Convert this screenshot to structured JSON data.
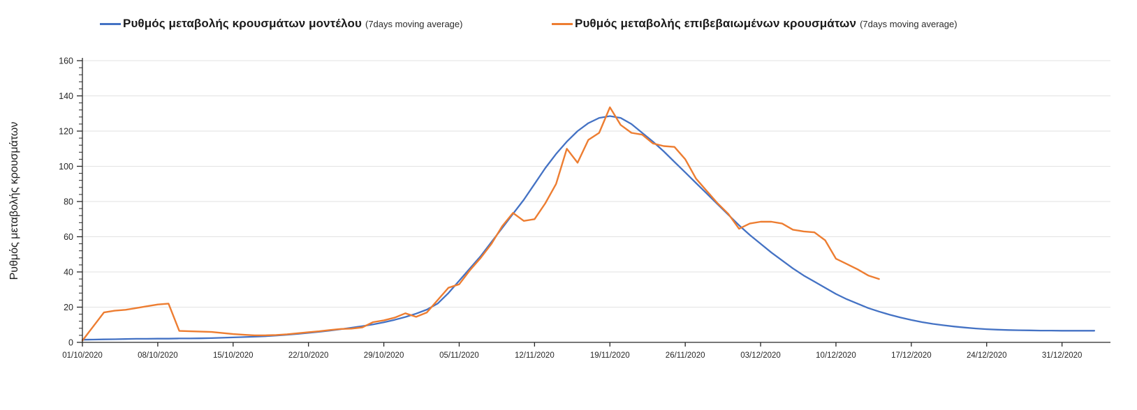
{
  "page": {
    "background": "#ffffff"
  },
  "y_axis_title": "Ρυθμός μεταβολής κρουσμάτων",
  "legend": {
    "position": "top",
    "items": [
      {
        "label": "Ρυθμός μεταβολής κρουσμάτων μοντέλου",
        "note": "(7days moving average)",
        "color": "#4472C4"
      },
      {
        "label": "Ρυθμός μεταβολής επιβεβαιωμένων κρουσμάτων",
        "note": "(7days moving average)",
        "color": "#ED7D31"
      }
    ]
  },
  "colors": {
    "series_model": "#4472C4",
    "series_confirmed": "#ED7D31",
    "axis": "#262626",
    "gridline": "#e2e2e2",
    "tick_text": "#262626"
  },
  "chart_data": {
    "type": "line",
    "title": "",
    "xlabel": "",
    "ylabel": "Ρυθμός μεταβολής κρουσμάτων",
    "x_unit": "days since 01/10/2020, daily points",
    "xlim": [
      0,
      95.5
    ],
    "ylim": [
      0,
      160
    ],
    "y_major_ticks": [
      0,
      20,
      40,
      60,
      80,
      100,
      120,
      140,
      160
    ],
    "y_minor_unit": 4,
    "grid": "horizontal gridlines at major y ticks",
    "legend_position": "top",
    "x_tick_days": [
      0,
      7,
      14,
      21,
      28,
      35,
      42,
      49,
      56,
      63,
      70,
      77,
      84,
      91
    ],
    "x_tick_labels": [
      "01/10/2020",
      "08/10/2020",
      "15/10/2020",
      "22/10/2020",
      "29/10/2020",
      "05/11/2020",
      "12/11/2020",
      "19/11/2020",
      "26/11/2020",
      "03/12/2020",
      "10/12/2020",
      "17/12/2020",
      "24/12/2020",
      "31/12/2020"
    ],
    "series": [
      {
        "name": "Ρυθμός μεταβολής κρουσμάτων μοντέλου (7days moving average)",
        "color": "#4472C4",
        "start_date": "01/10/2020",
        "start_day": 0,
        "values": [
          1.5,
          1.6,
          1.7,
          1.8,
          1.9,
          2.0,
          2.0,
          2.1,
          2.1,
          2.2,
          2.2,
          2.3,
          2.4,
          2.6,
          2.8,
          3.0,
          3.2,
          3.5,
          3.9,
          4.3,
          4.8,
          5.4,
          6.0,
          6.7,
          7.5,
          8.3,
          9.2,
          10.2,
          11.4,
          12.8,
          14.4,
          16.3,
          18.6,
          22,
          28,
          35,
          42,
          49,
          57,
          65,
          73,
          81,
          90,
          99,
          107,
          114,
          120,
          124.5,
          127.5,
          128.5,
          127.5,
          124,
          119,
          114,
          108.5,
          102.5,
          96.5,
          90.5,
          84.5,
          78.5,
          72.5,
          66.5,
          61,
          56,
          51,
          46.5,
          42,
          38,
          34.5,
          31,
          27.5,
          24.5,
          22,
          19.5,
          17.5,
          15.7,
          14.1,
          12.7,
          11.5,
          10.5,
          9.7,
          9.0,
          8.4,
          7.9,
          7.5,
          7.2,
          7.0,
          6.9,
          6.8,
          6.7,
          6.7,
          6.6,
          6.6,
          6.6,
          6.6
        ]
      },
      {
        "name": "Ρυθμός μεταβολής επιβεβαιωμένων κρουσμάτων (7days moving average)",
        "color": "#ED7D31",
        "start_date": "01/10/2020",
        "start_day": 0,
        "values": [
          1,
          9,
          17,
          18,
          18.5,
          19.5,
          20.5,
          21.5,
          22,
          6.5,
          6.3,
          6.1,
          5.9,
          5.3,
          4.7,
          4.3,
          4.0,
          4.0,
          4.2,
          4.6,
          5.2,
          5.8,
          6.3,
          7.0,
          7.6,
          7.8,
          8.5,
          11.5,
          12.5,
          14,
          16.5,
          14.5,
          17,
          24,
          31,
          33,
          41,
          48,
          56,
          66,
          73.5,
          69,
          70,
          79,
          90,
          110,
          102,
          115,
          119,
          133.5,
          123.5,
          119,
          118,
          113,
          111.5,
          111,
          104,
          93,
          86,
          79,
          73,
          64.5,
          67.5,
          68.5,
          68.5,
          67.5,
          64,
          63,
          62.5,
          58,
          47.5,
          44.5,
          41.5,
          38,
          36
        ]
      }
    ]
  }
}
